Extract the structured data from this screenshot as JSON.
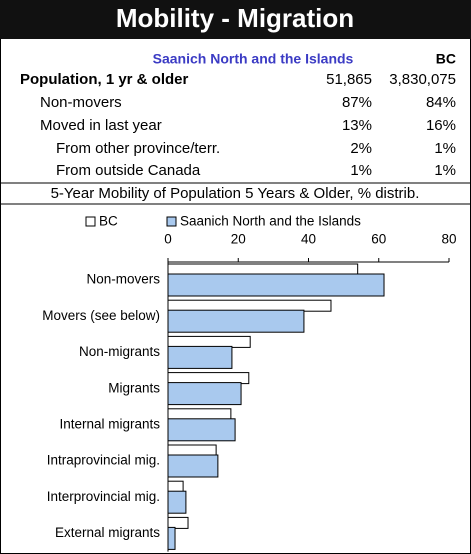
{
  "header": {
    "title": "Mobility - Migration"
  },
  "table": {
    "columns": [
      "Saanich North and the Islands",
      "BC"
    ],
    "rows": [
      [
        "Population, 1 yr & older",
        "51,865",
        "3,830,075"
      ],
      [
        "Non-movers",
        "87%",
        "84%"
      ],
      [
        "Moved in last year",
        "13%",
        "16%"
      ],
      [
        "From other province/terr.",
        "2%",
        "1%"
      ],
      [
        "From outside Canada",
        "1%",
        "1%"
      ]
    ]
  },
  "chart_data": {
    "type": "bar",
    "orientation": "horizontal",
    "title": "5-Year Mobility of Population 5 Years & Older, % distrib.",
    "categories": [
      "Non-movers",
      "Movers (see below)",
      "Non-migrants",
      "Migrants",
      "Internal migrants",
      "Intraprovincial mig.",
      "Interprovincial mig.",
      "External migrants"
    ],
    "series": [
      {
        "name": "BC",
        "color": "#ffffff",
        "values": [
          54,
          46.4,
          23.4,
          23,
          17.9,
          13.7,
          4.3,
          5.7
        ]
      },
      {
        "name": "Saanich North and the Islands",
        "color": "#a9c9ee",
        "values": [
          61.5,
          38.7,
          18.2,
          20.8,
          19.1,
          14.2,
          5.1,
          2
        ]
      }
    ],
    "xlim": [
      0,
      80
    ],
    "xticks": [
      0,
      20,
      40,
      60,
      80
    ]
  }
}
